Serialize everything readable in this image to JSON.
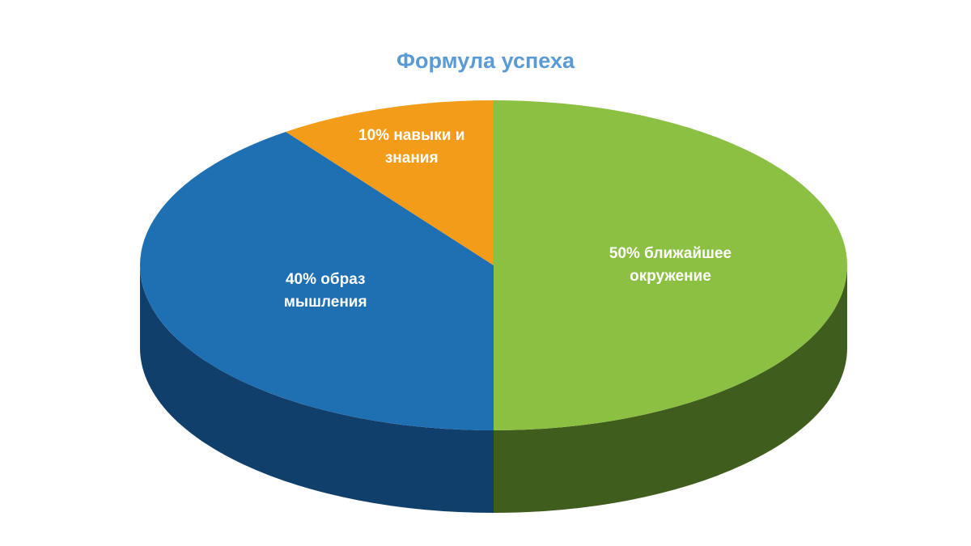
{
  "chart_data": {
    "type": "pie3d",
    "title": "Формула успеха",
    "values": [
      50,
      40,
      10
    ],
    "value_labels": [
      "50% ближайшее окружение",
      "40% образ мышления",
      "10% навыки и знания"
    ],
    "colors": [
      "#8cc043",
      "#1f6fb3",
      "#f39c1a"
    ],
    "side_colors": [
      "#3f5e1d",
      "#113f6c",
      "#a8620c"
    ]
  }
}
